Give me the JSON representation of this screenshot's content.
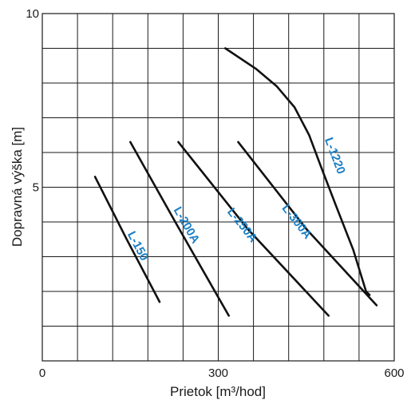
{
  "chart_data": {
    "type": "line",
    "title": "",
    "xlabel": "Prietok [m³/hod]",
    "ylabel": "Dopravná výška [m]",
    "xlim": [
      0,
      600
    ],
    "ylim": [
      0,
      10
    ],
    "x_ticks": [
      {
        "value": 0,
        "label": "0"
      },
      {
        "value": 300,
        "label": "300"
      },
      {
        "value": 600,
        "label": "600"
      }
    ],
    "y_ticks": [
      {
        "value": 5,
        "label": "5"
      },
      {
        "value": 10,
        "label": "10"
      }
    ],
    "grid": {
      "x_step": 60,
      "y_step": 1,
      "shown": true
    },
    "series": [
      {
        "name": "L-150",
        "points": [
          [
            90,
            5.3
          ],
          [
            144,
            3.5
          ],
          [
            200,
            1.7
          ]
        ],
        "label_at": [
          162,
          3.3
        ]
      },
      {
        "name": "L-200A",
        "points": [
          [
            150,
            6.3
          ],
          [
            230,
            3.9
          ],
          [
            318,
            1.3
          ]
        ],
        "label_at": [
          245,
          3.9
        ]
      },
      {
        "name": "L-250A",
        "points": [
          [
            232,
            6.3
          ],
          [
            350,
            3.8
          ],
          [
            488,
            1.3
          ]
        ],
        "label_at": [
          340,
          3.9
        ]
      },
      {
        "name": "L-300A",
        "points": [
          [
            334,
            6.3
          ],
          [
            450,
            3.8
          ],
          [
            570,
            1.6
          ]
        ],
        "label_at": [
          433,
          4.0
        ]
      },
      {
        "name": "L-1220",
        "points": [
          [
            312,
            9.0
          ],
          [
            365,
            8.4
          ],
          [
            400,
            7.9
          ],
          [
            430,
            7.3
          ],
          [
            455,
            6.5
          ],
          [
            475,
            5.6
          ],
          [
            500,
            4.5
          ],
          [
            530,
            3.2
          ],
          [
            552,
            2.0
          ],
          [
            558,
            1.9
          ]
        ],
        "label_at": [
          498,
          5.9
        ]
      }
    ],
    "line_color": "#111111",
    "label_color": "#1a7fc4",
    "legend": "none"
  }
}
